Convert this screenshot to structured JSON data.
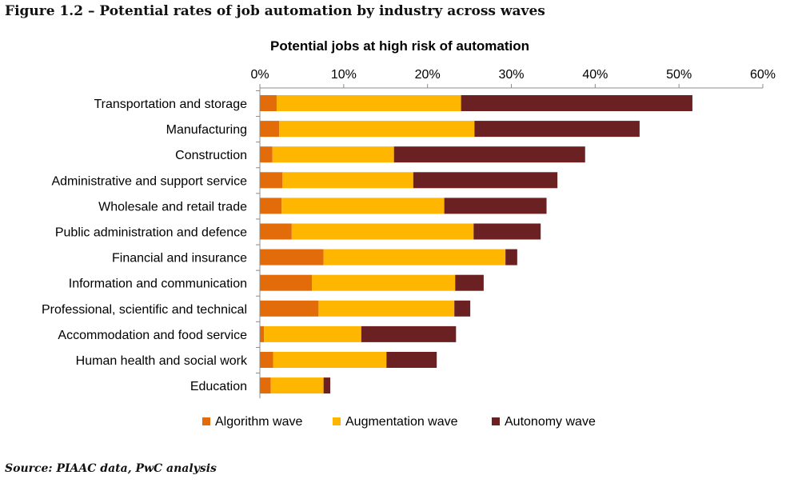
{
  "figure": {
    "title": "Figure 1.2 – Potential rates of job automation by industry across waves",
    "source": "Source: PIAAC data, PwC analysis"
  },
  "chart_data": {
    "type": "bar",
    "orientation": "horizontal",
    "stacked": true,
    "title": "Potential jobs at high risk of automation",
    "xlabel": "",
    "ylabel": "",
    "xlim": [
      0,
      60
    ],
    "x_ticks": [
      0,
      10,
      20,
      30,
      40,
      50,
      60
    ],
    "x_tick_labels": [
      "0%",
      "10%",
      "20%",
      "30%",
      "40%",
      "50%",
      "60%"
    ],
    "x_axis_position": "top",
    "grid": false,
    "legend_position": "bottom",
    "categories": [
      "Transportation and storage",
      "Manufacturing",
      "Construction",
      "Administrative and support service",
      "Wholesale and retail trade",
      "Public administration and defence",
      "Financial and insurance",
      "Information and communication",
      "Professional, scientific and technical",
      "Accommodation and food service",
      "Human health and social work",
      "Education"
    ],
    "series": [
      {
        "name": "Algorithm wave",
        "color": "#e36c0a",
        "values": [
          2.0,
          2.3,
          1.5,
          2.7,
          2.6,
          3.8,
          7.6,
          6.2,
          7.0,
          0.5,
          1.6,
          1.3
        ]
      },
      {
        "name": "Augmentation wave",
        "color": "#ffb600",
        "values": [
          22.0,
          23.3,
          14.5,
          15.6,
          19.4,
          21.7,
          21.7,
          17.1,
          16.2,
          11.6,
          13.5,
          6.3
        ]
      },
      {
        "name": "Autonomy wave",
        "color": "#6b2121",
        "values": [
          27.6,
          19.7,
          22.8,
          17.2,
          12.2,
          8.0,
          1.4,
          3.4,
          1.9,
          11.3,
          6.0,
          0.8
        ]
      }
    ]
  }
}
